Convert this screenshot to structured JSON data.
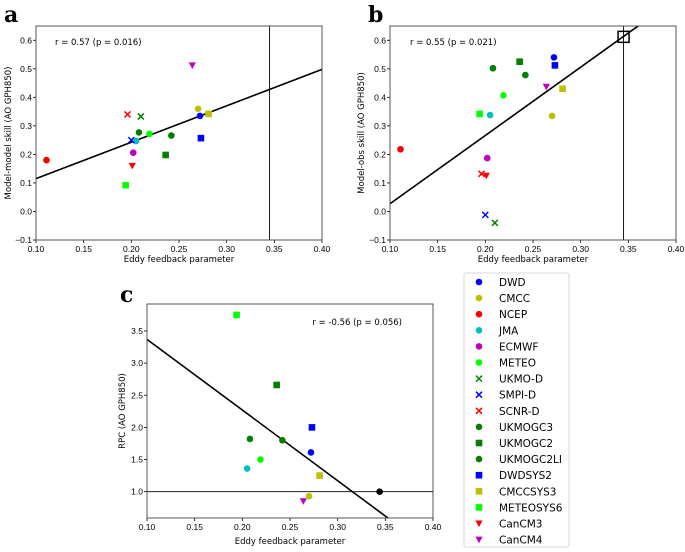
{
  "chart_data": {
    "type": "scatter",
    "colors": {
      "blue": "#0000ff",
      "yellow": "#bfbf00",
      "red": "#ff0000",
      "cyan": "#00bfbf",
      "magenta": "#bf00bf",
      "lime": "#00ff00",
      "green": "#008000",
      "black": "#000000"
    },
    "models": [
      {
        "name": "DWD",
        "color": "#0000ff",
        "marker": "circle",
        "x": 0.272,
        "a": 0.335,
        "b": 0.54,
        "c": 1.61
      },
      {
        "name": "CMCC",
        "color": "#bfbf00",
        "marker": "circle",
        "x": 0.27,
        "a": 0.36,
        "b": 0.335,
        "c": 0.93
      },
      {
        "name": "NCEP",
        "color": "#ff0000",
        "marker": "circle",
        "x": 0.111,
        "a": 0.18,
        "b": 0.218,
        "c": null
      },
      {
        "name": "JMA",
        "color": "#00bfbf",
        "marker": "circle",
        "x": 0.205,
        "a": 0.247,
        "b": 0.338,
        "c": 1.36
      },
      {
        "name": "ECMWF",
        "color": "#bf00bf",
        "marker": "circle",
        "x": 0.202,
        "a": 0.206,
        "b": 0.187,
        "c": null
      },
      {
        "name": "METEO",
        "color": "#00ff00",
        "marker": "circle",
        "x": 0.219,
        "a": 0.272,
        "b": 0.407,
        "c": 1.5
      },
      {
        "name": "UKMO-D",
        "color": "#008000",
        "marker": "x",
        "x": 0.21,
        "a": 0.333,
        "b": -0.04,
        "c": null
      },
      {
        "name": "SMPI-D",
        "color": "#0000ff",
        "marker": "x",
        "x": 0.2,
        "a": 0.25,
        "b": -0.012,
        "c": null
      },
      {
        "name": "SCNR-D",
        "color": "#ff0000",
        "marker": "x",
        "x": 0.196,
        "a": 0.34,
        "b": 0.132,
        "c": null
      },
      {
        "name": "UKMOGC3",
        "color": "#008000",
        "marker": "circle",
        "x": 0.208,
        "a": 0.277,
        "b": 0.502,
        "c": 1.82
      },
      {
        "name": "UKMOGC2",
        "color": "#008000",
        "marker": "square",
        "x": 0.236,
        "a": 0.198,
        "b": 0.525,
        "c": 2.66
      },
      {
        "name": "UKMOGC2LI",
        "color": "#008000",
        "marker": "circle",
        "x": 0.242,
        "a": 0.266,
        "b": 0.478,
        "c": 1.8
      },
      {
        "name": "DWDSYS2",
        "color": "#0000ff",
        "marker": "square",
        "x": 0.273,
        "a": 0.257,
        "b": 0.512,
        "c": 2.0
      },
      {
        "name": "CMCCSYS3",
        "color": "#bfbf00",
        "marker": "square",
        "x": 0.281,
        "a": 0.342,
        "b": 0.43,
        "c": 1.25
      },
      {
        "name": "METEOSYS6",
        "color": "#00ff00",
        "marker": "square",
        "x": 0.194,
        "a": 0.092,
        "b": 0.342,
        "c": 3.75
      },
      {
        "name": "CanCM3",
        "color": "#ff0000",
        "marker": "triangle",
        "x": 0.201,
        "a": 0.16,
        "b": 0.125,
        "c": null
      },
      {
        "name": "CanCM4",
        "color": "#bf00bf",
        "marker": "triangle",
        "x": 0.264,
        "a": 0.512,
        "b": 0.437,
        "c": 0.85
      }
    ],
    "panels": [
      {
        "id": "a",
        "label": "a",
        "xlabel": "Eddy feedback parameter",
        "ylabel": "Model-model skill (AO GPH850)",
        "annotation": "r = 0.57 (p = 0.016)",
        "xlim": [
          0.1,
          0.4
        ],
        "ylim": [
          -0.1,
          0.65
        ],
        "xticks": [
          0.1,
          0.15,
          0.2,
          0.25,
          0.3,
          0.35,
          0.4
        ],
        "xtick_labels": [
          "0.10",
          "0.15",
          "0.20",
          "0.25",
          "0.30",
          "0.35",
          "0.40"
        ],
        "yticks": [
          -0.1,
          0.0,
          0.1,
          0.2,
          0.3,
          0.4,
          0.5,
          0.6
        ],
        "ytick_labels": [
          "−0.1",
          "0.0",
          "0.1",
          "0.2",
          "0.3",
          "0.4",
          "0.5",
          "0.6"
        ],
        "fit": [
          [
            0.1,
            0.115
          ],
          [
            0.4,
            0.498
          ]
        ],
        "vline": 0.345,
        "hline": null,
        "extra_point": null
      },
      {
        "id": "b",
        "label": "b",
        "xlabel": "Eddy feedback parameter",
        "ylabel": "Model-obs skill (AO GPH850)",
        "annotation": "r = 0.55 (p = 0.021)",
        "xlim": [
          0.1,
          0.4
        ],
        "ylim": [
          -0.1,
          0.65
        ],
        "xticks": [
          0.1,
          0.15,
          0.2,
          0.25,
          0.3,
          0.35,
          0.4
        ],
        "xtick_labels": [
          "0.10",
          "0.15",
          "0.20",
          "0.25",
          "0.30",
          "0.35",
          "0.40"
        ],
        "yticks": [
          -0.1,
          0.0,
          0.1,
          0.2,
          0.3,
          0.4,
          0.5,
          0.6
        ],
        "ytick_labels": [
          "−0.1",
          "0.0",
          "0.1",
          "0.2",
          "0.3",
          "0.4",
          "0.5",
          "0.6"
        ],
        "fit": [
          [
            0.1,
            0.027
          ],
          [
            0.4,
            0.745
          ]
        ],
        "vline": 0.345,
        "hline": null,
        "extra_point": {
          "x": 0.345,
          "y": 0.612,
          "marker": "open-square",
          "color": "#000000"
        }
      },
      {
        "id": "c",
        "label": "c",
        "xlabel": "Eddy feedback parameter",
        "ylabel": "RPC (AO GPH850)",
        "annotation": "r = -0.56 (p = 0.056)",
        "xlim": [
          0.1,
          0.4
        ],
        "ylim": [
          0.59,
          3.92
        ],
        "xticks": [
          0.1,
          0.15,
          0.2,
          0.25,
          0.3,
          0.35,
          0.4
        ],
        "xtick_labels": [
          "0.10",
          "0.15",
          "0.20",
          "0.25",
          "0.30",
          "0.35",
          "0.40"
        ],
        "yticks": [
          1.0,
          1.5,
          2.0,
          2.5,
          3.0,
          3.5
        ],
        "ytick_labels": [
          "1.0",
          "1.5",
          "2.0",
          "2.5",
          "3.0",
          "3.5"
        ],
        "fit": [
          [
            0.1,
            3.37
          ],
          [
            0.4,
            0.07
          ]
        ],
        "vline": null,
        "hline": 1.0,
        "extra_point": {
          "x": 0.344,
          "y": 1.0,
          "marker": "circle",
          "color": "#000000"
        }
      }
    ],
    "legend_position": "lower-right"
  }
}
